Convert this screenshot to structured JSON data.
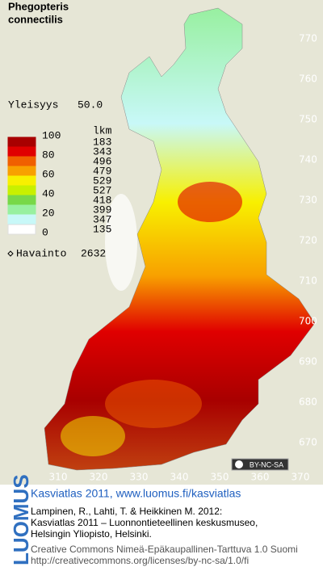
{
  "species": [
    "Phegopteris",
    "connectilis"
  ],
  "frequency": {
    "label": "Yleisyys",
    "value": "50.0"
  },
  "legend": {
    "scale_labels": [
      100,
      80,
      60,
      40,
      20,
      0
    ],
    "count_header": "lkm",
    "counts": [
      183,
      343,
      496,
      479,
      529,
      527,
      418,
      399,
      347,
      135
    ],
    "colors": [
      "#a80000",
      "#e00000",
      "#f06000",
      "#f8a000",
      "#f8f000",
      "#c8f000",
      "#78d848",
      "#98f0a0",
      "#c8f8f8",
      "#ffffff"
    ]
  },
  "observations": {
    "label": "Havainto",
    "value": 2632
  },
  "y_ticks": [
    770,
    760,
    750,
    740,
    730,
    720,
    710,
    700,
    690,
    680,
    670
  ],
  "x_ticks": [
    310,
    320,
    330,
    340,
    350,
    360,
    370
  ],
  "license_badge": "BY-NC-SA",
  "footer": {
    "brand": "LUOMUS",
    "headline": "Kasviatlas 2011, www.luomus.fi/kasviatlas",
    "citation": [
      "Lampinen, R., Lahti, T. & Heikkinen M. 2012:",
      "Kasviatlas 2011 – Luonnontieteellinen keskusmuseo,",
      "Helsingin Yliopisto, Helsinki."
    ],
    "license": [
      "Creative Commons Nimeä-Epäkaupallinen-Tarttuva 1.0 Suomi",
      "http://creativecommons.org/licenses/by-nc-sa/1.0/fi"
    ]
  }
}
